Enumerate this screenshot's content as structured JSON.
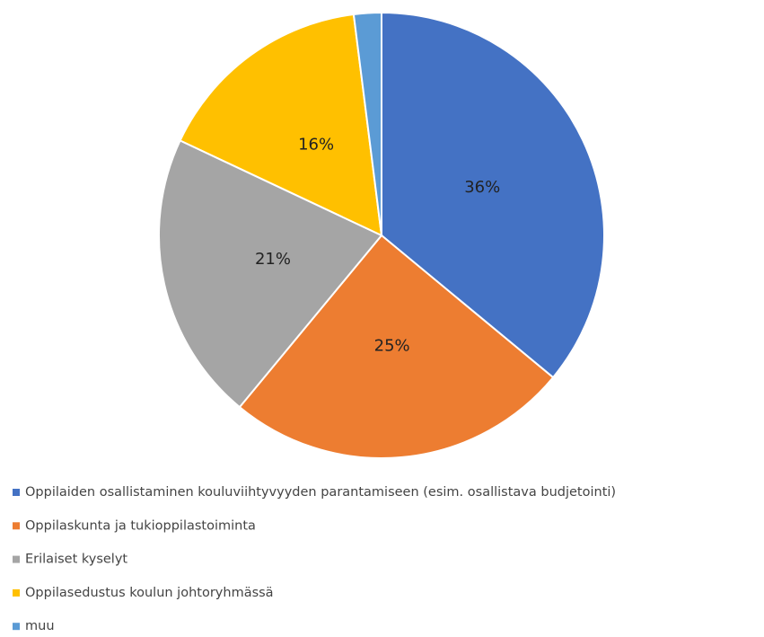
{
  "chart_data": {
    "type": "pie",
    "categories": [
      "Oppilaiden osallistaminen kouluviihtyvyyden parantamiseen (esim. osallistava budjetointi)",
      "Oppilaskunta ja tukioppilastoiminta",
      "Erilaiset kyselyt",
      "Oppilasedustus koulun johtoryhmässä",
      "muu"
    ],
    "values": [
      36,
      25,
      21,
      16,
      2
    ],
    "value_labels": [
      "36%",
      "25%",
      "21%",
      "16%",
      null
    ],
    "colors": [
      "#4472c4",
      "#ed7d31",
      "#a5a5a5",
      "#ffc000",
      "#5b9bd5"
    ],
    "legend": "bottom-left"
  }
}
